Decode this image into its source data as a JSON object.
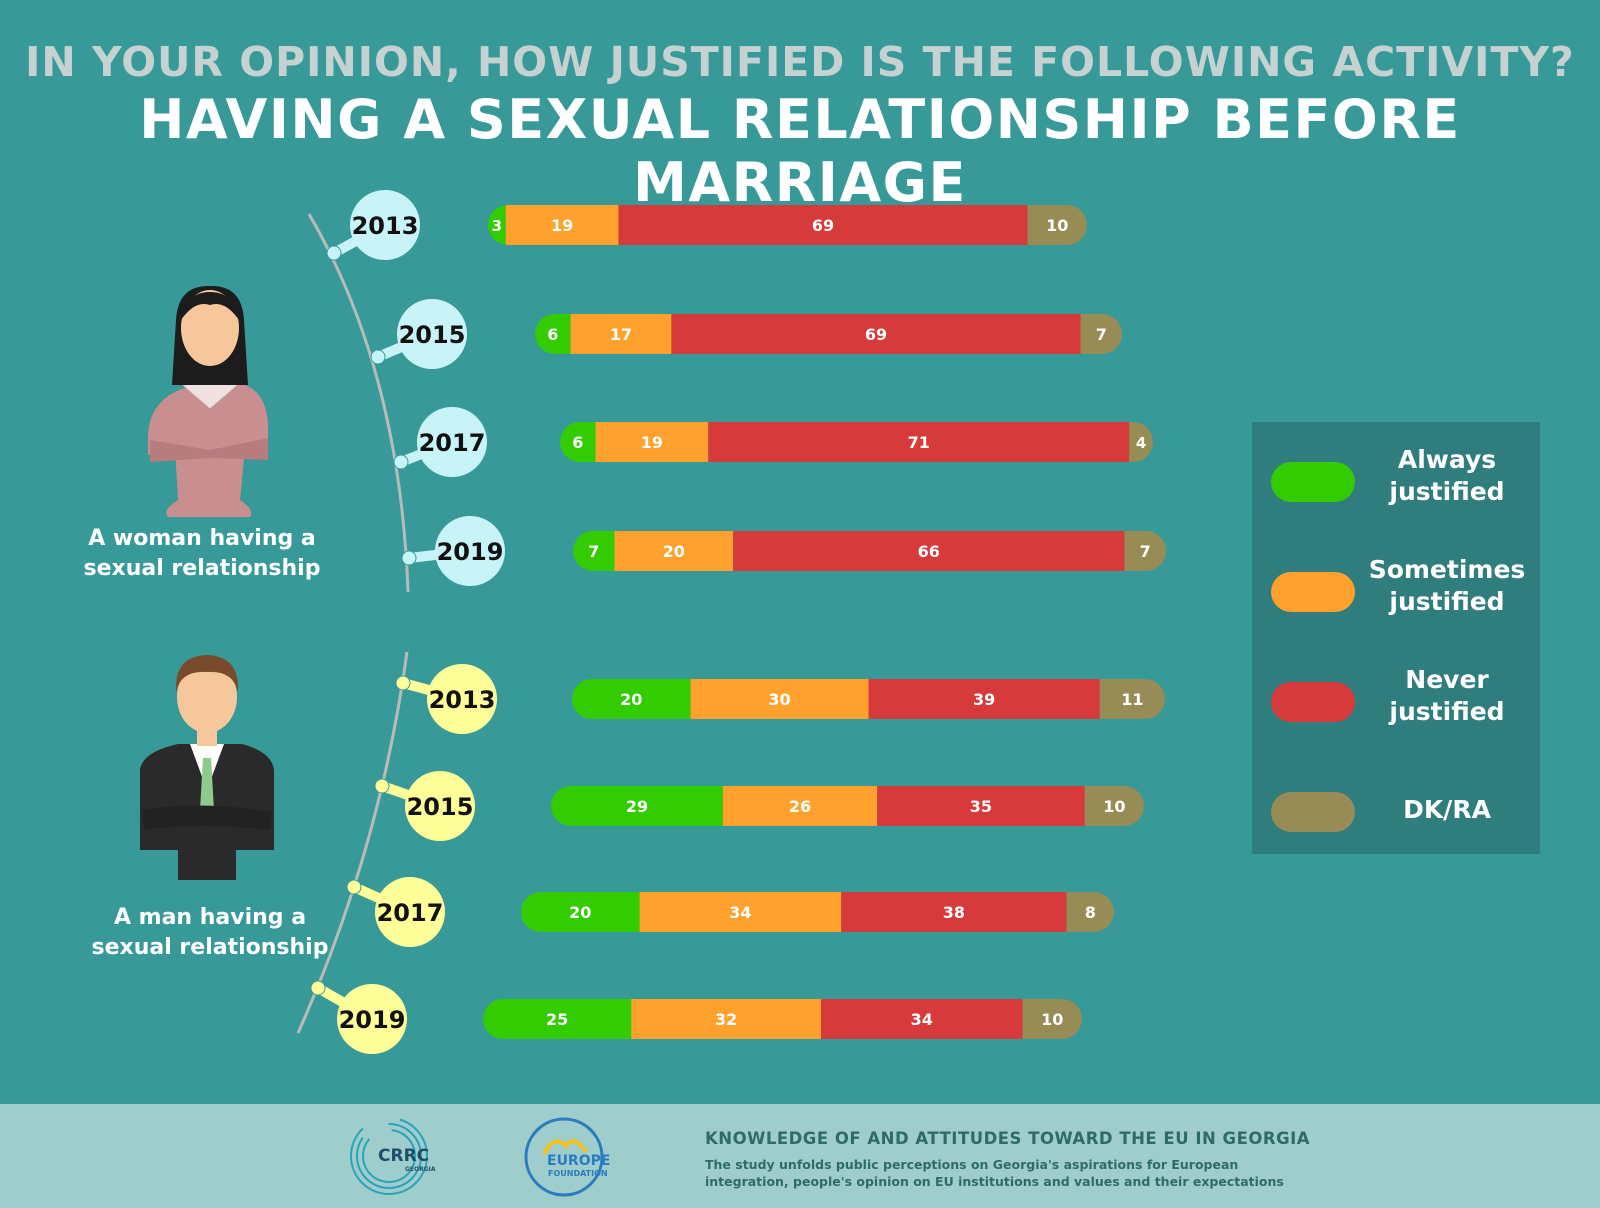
{
  "header": {
    "question": "IN YOUR OPINION, HOW JUSTIFIED IS THE FOLLOWING ACTIVITY?",
    "activity": "HAVING A SEXUAL RELATIONSHIP BEFORE MARRIAGE"
  },
  "groups": {
    "woman_label": "A woman having a sexual relationship",
    "man_label": "A man having a sexual relationship"
  },
  "legend": [
    {
      "label": "Always justified",
      "color": "#33cc00"
    },
    {
      "label": "Sometimes justified",
      "color": "#ffa12c"
    },
    {
      "label": "Never justified",
      "color": "#d73a3a"
    },
    {
      "label": "DK/RA",
      "color": "#978b56"
    }
  ],
  "colors": {
    "background": "#379a99",
    "woman_bubble": "#c9f4f7",
    "man_bubble": "#ffff99",
    "timeline": "#b9bbbb"
  },
  "chart_data": [
    {
      "type": "bar",
      "orientation": "horizontal",
      "stacked": true,
      "group": "A woman having a sexual relationship",
      "categories": [
        "2013",
        "2015",
        "2017",
        "2019"
      ],
      "series": [
        {
          "name": "Always justified",
          "values": [
            3,
            6,
            6,
            7
          ]
        },
        {
          "name": "Sometimes justified",
          "values": [
            19,
            17,
            19,
            20
          ]
        },
        {
          "name": "Never justified",
          "values": [
            69,
            69,
            71,
            66
          ]
        },
        {
          "name": "DK/RA",
          "values": [
            10,
            7,
            4,
            7
          ]
        }
      ]
    },
    {
      "type": "bar",
      "orientation": "horizontal",
      "stacked": true,
      "group": "A man having a sexual relationship",
      "categories": [
        "2013",
        "2015",
        "2017",
        "2019"
      ],
      "series": [
        {
          "name": "Always justified",
          "values": [
            20,
            29,
            20,
            25
          ]
        },
        {
          "name": "Sometimes justified",
          "values": [
            30,
            26,
            34,
            32
          ]
        },
        {
          "name": "Never justified",
          "values": [
            39,
            35,
            38,
            34
          ]
        },
        {
          "name": "DK/RA",
          "values": [
            11,
            10,
            8,
            10
          ]
        }
      ]
    }
  ],
  "footer": {
    "logo1": "CRRC",
    "logo1_sub": "GEORGIA",
    "logo2_line1": "EUROPE",
    "logo2_line2": "FOUNDATION",
    "title": "KNOWLEDGE OF AND ATTITUDES TOWARD THE EU IN GEORGIA",
    "description": "The study unfolds public perceptions on Georgia's aspirations for European integration, people's opinion on EU institutions and values and their expectations"
  }
}
